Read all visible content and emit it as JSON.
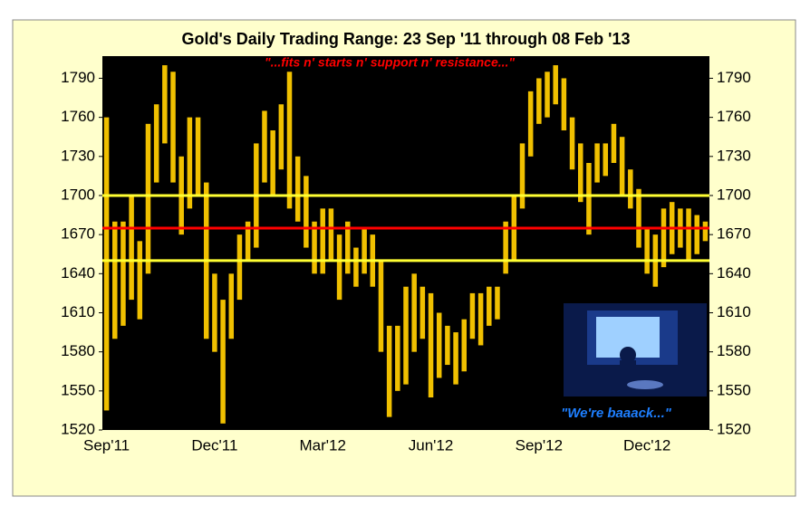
{
  "chart_data": {
    "type": "range_bar",
    "title": "Gold's Daily Trading Range:  23 Sep '11 through 08 Feb '13",
    "subtitle": "\"...fits n' starts n' support n' resistance...\"",
    "annotation": "\"We're baaack...\"",
    "categories": [
      "Sep'11",
      null,
      null,
      null,
      null,
      null,
      null,
      null,
      null,
      null,
      null,
      null,
      null,
      "Dec'11",
      null,
      null,
      null,
      null,
      null,
      null,
      null,
      null,
      null,
      null,
      null,
      null,
      "Mar'12",
      null,
      null,
      null,
      null,
      null,
      null,
      null,
      null,
      null,
      null,
      null,
      null,
      "Jun'12",
      null,
      null,
      null,
      null,
      null,
      null,
      null,
      null,
      null,
      null,
      null,
      null,
      "Sep'12",
      null,
      null,
      null,
      null,
      null,
      null,
      null,
      null,
      null,
      null,
      null,
      null,
      "Dec'12",
      null,
      null,
      null,
      null,
      null,
      null,
      null
    ],
    "low": [
      1535,
      1590,
      1600,
      1620,
      1605,
      1640,
      1710,
      1740,
      1710,
      1670,
      1690,
      1700,
      1590,
      1580,
      1525,
      1590,
      1620,
      1650,
      1660,
      1710,
      1700,
      1720,
      1690,
      1680,
      1660,
      1640,
      1640,
      1650,
      1620,
      1640,
      1630,
      1640,
      1630,
      1580,
      1530,
      1550,
      1555,
      1580,
      1590,
      1545,
      1560,
      1570,
      1555,
      1565,
      1590,
      1585,
      1600,
      1605,
      1640,
      1650,
      1690,
      1730,
      1755,
      1760,
      1770,
      1750,
      1720,
      1695,
      1670,
      1710,
      1715,
      1725,
      1700,
      1690,
      1660,
      1640,
      1630,
      1645,
      1655,
      1660,
      1650,
      1655,
      1665
    ],
    "high": [
      1760,
      1680,
      1680,
      1700,
      1665,
      1755,
      1770,
      1800,
      1795,
      1730,
      1760,
      1760,
      1710,
      1640,
      1620,
      1640,
      1670,
      1680,
      1740,
      1765,
      1750,
      1770,
      1795,
      1730,
      1715,
      1680,
      1690,
      1690,
      1670,
      1680,
      1660,
      1675,
      1670,
      1650,
      1600,
      1600,
      1630,
      1640,
      1630,
      1625,
      1610,
      1600,
      1595,
      1605,
      1625,
      1625,
      1630,
      1630,
      1680,
      1700,
      1740,
      1780,
      1790,
      1795,
      1800,
      1790,
      1760,
      1740,
      1725,
      1740,
      1740,
      1755,
      1745,
      1720,
      1705,
      1675,
      1670,
      1690,
      1695,
      1690,
      1690,
      1685,
      1680
    ],
    "color": "#f0c000",
    "ylim": [
      1520,
      1807
    ],
    "yticks": [
      1520,
      1550,
      1580,
      1610,
      1640,
      1670,
      1700,
      1730,
      1760,
      1790
    ],
    "reference_lines": [
      {
        "value": 1700,
        "color": "#ffff33"
      },
      {
        "value": 1675,
        "color": "#ff0000"
      },
      {
        "value": 1650,
        "color": "#ffff33"
      }
    ]
  }
}
